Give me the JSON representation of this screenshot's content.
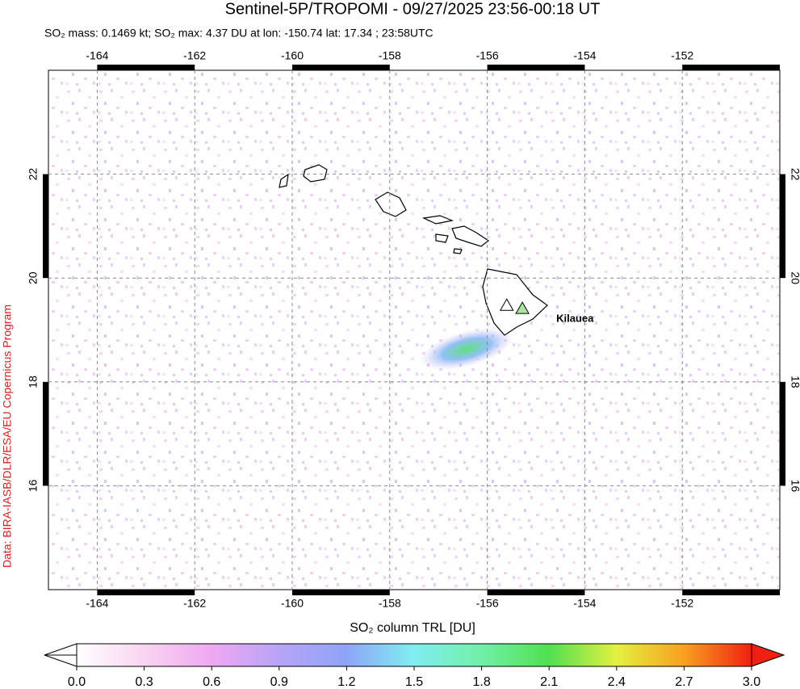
{
  "chart_data": {
    "type": "map",
    "title": "Sentinel-5P/TROPOMI - 09/27/2025 23:56-00:18 UT",
    "subtitle": "SO₂ mass: 0.1469 kt; SO₂ max: 4.37 DU at lon: -150.74 lat: 17.34 ; 23:58UTC",
    "credit": "Data: BIRA-IASB/DLR/ESA/EU Copernicus Program",
    "xlim": [
      -165,
      -150
    ],
    "ylim": [
      14,
      24
    ],
    "xticks": [
      -164,
      -162,
      -160,
      -158,
      -156,
      -154,
      -152
    ],
    "yticks": [
      16,
      18,
      20,
      22
    ],
    "grid": true,
    "markers": [
      {
        "lon": -155.6,
        "lat": 19.47,
        "color": "#ffffff"
      },
      {
        "lon": -155.28,
        "lat": 19.41,
        "color": "#a8e6a0",
        "label": "Kilauea"
      }
    ],
    "colorbar": {
      "label": "SO₂ column TRL [DU]",
      "lim": [
        0,
        3
      ],
      "ticks": [
        {
          "value": 0,
          "label": "0.0"
        },
        0.3,
        0.6,
        0.9,
        1.2,
        1.5,
        1.8,
        2.1,
        2.4,
        2.7,
        {
          "value": 3,
          "label": "3.0"
        }
      ],
      "colors": [
        "#ffffff",
        "#f8d4f0",
        "#eea8f2",
        "#b8a4f6",
        "#8ea4f8",
        "#80eef0",
        "#70f0a8",
        "#50e050",
        "#e4f040",
        "#f8a020",
        "#f02010"
      ]
    }
  }
}
